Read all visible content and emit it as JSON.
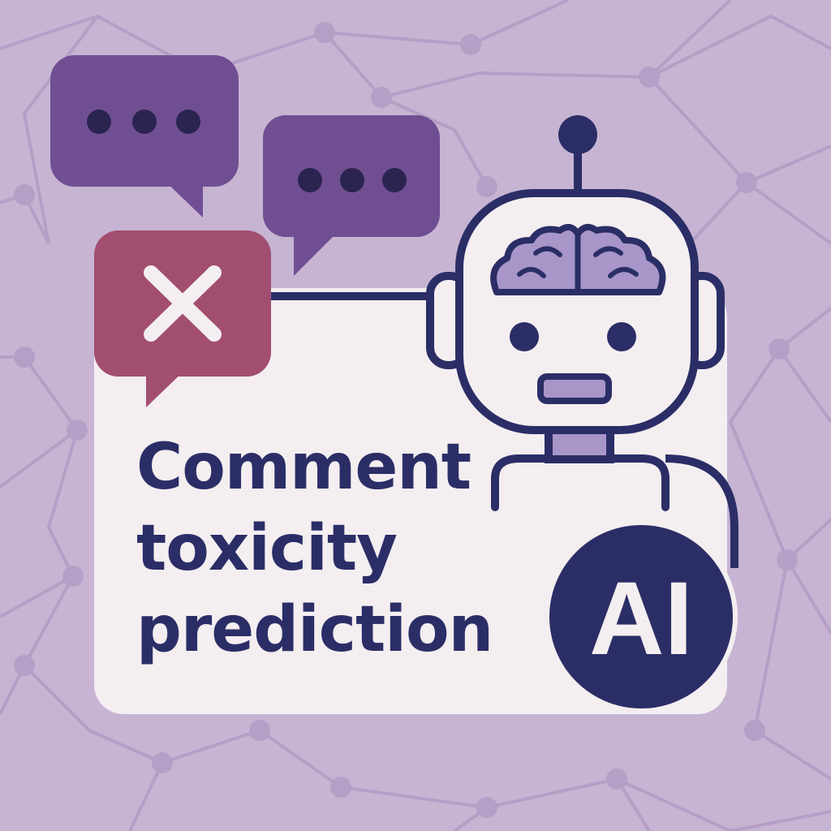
{
  "title": {
    "line1": "Comment",
    "line2": "toxicity",
    "line3": "prediction"
  },
  "badge": {
    "label": "AI"
  },
  "icons": {
    "typing_bubble_1": "typing-dots-bubble",
    "typing_bubble_2": "typing-dots-bubble",
    "rejected_bubble": "x-mark-bubble",
    "robot": "robot-with-brain",
    "brain": "brain",
    "badge": "ai-badge"
  },
  "colors": {
    "background": "#c7b4d3",
    "network_lines": "#b49fc6",
    "card": "#f4eef1",
    "bubble_purple": "#6f4f92",
    "bubble_rejected": "#a24e70",
    "navy": "#2b2e66",
    "robot_face": "#f4eef1",
    "robot_accent": "#a896c8"
  }
}
